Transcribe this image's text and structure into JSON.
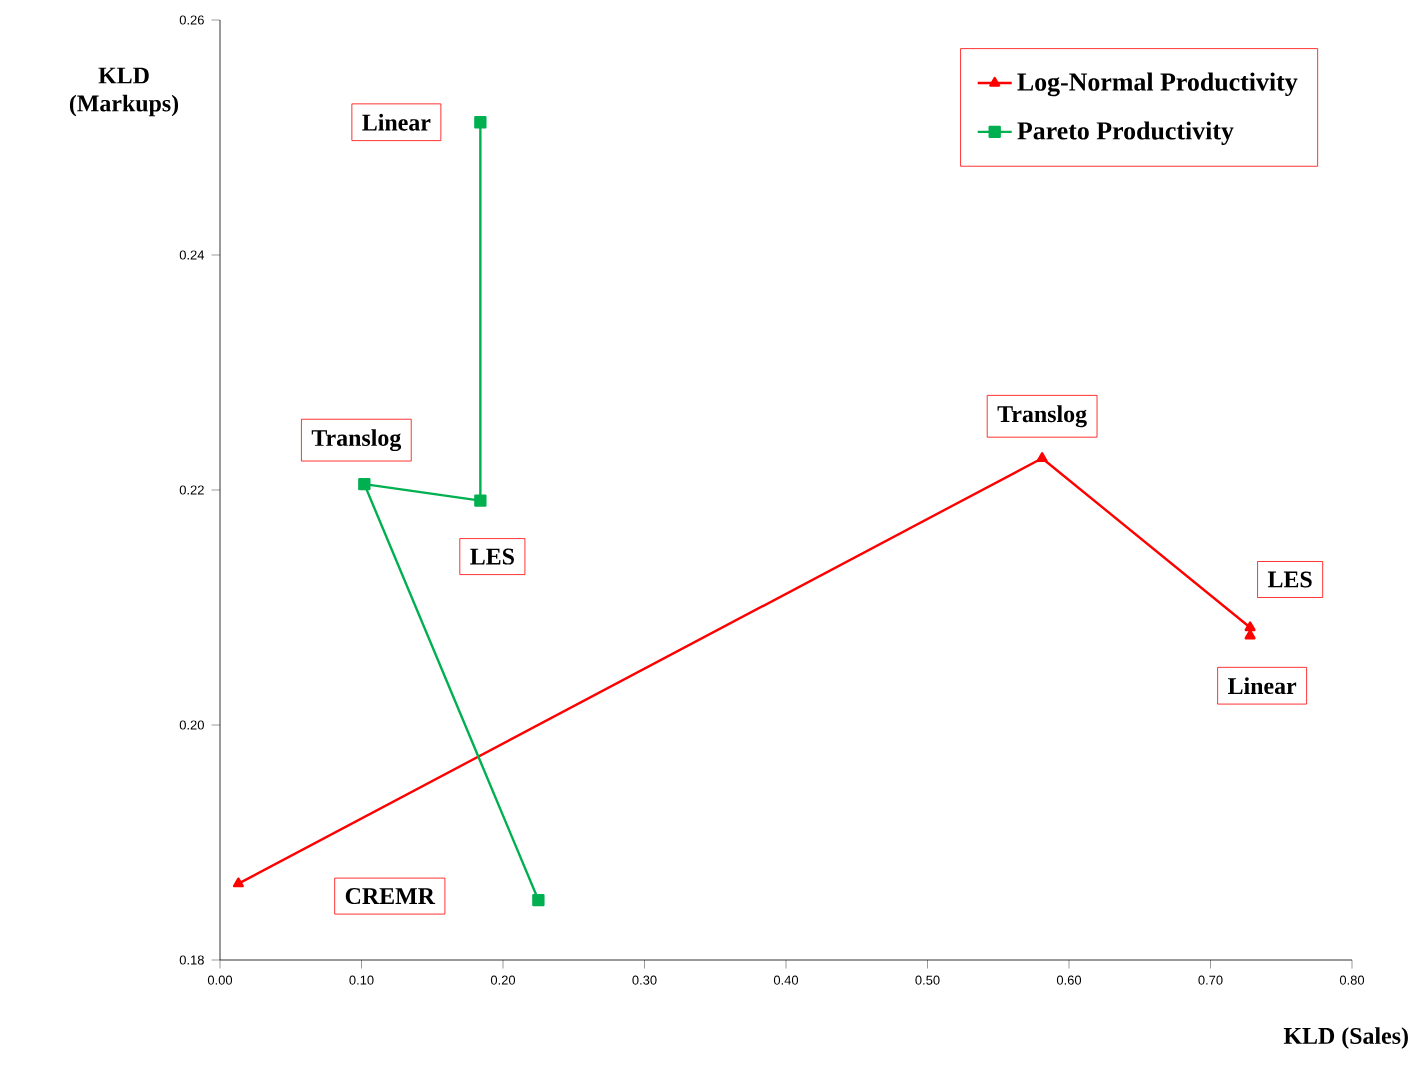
{
  "chart_data": {
    "type": "line",
    "xlabel": "KLD (Sales)",
    "ylabel": "KLD\n(Markups)",
    "xlim": [
      0,
      0.8
    ],
    "ylim": [
      0.18,
      0.26
    ],
    "xticks": [
      {
        "value": 0,
        "label": "0.00"
      },
      {
        "value": 0.1,
        "label": "0.10"
      },
      {
        "value": 0.2,
        "label": "0.20"
      },
      {
        "value": 0.3,
        "label": "0.30"
      },
      {
        "value": 0.4,
        "label": "0.40"
      },
      {
        "value": 0.5,
        "label": "0.50"
      },
      {
        "value": 0.6,
        "label": "0.60"
      },
      {
        "value": 0.7,
        "label": "0.70"
      },
      {
        "value": 0.8,
        "label": "0.80"
      }
    ],
    "yticks": [
      {
        "value": 0.18,
        "label": "0.18"
      },
      {
        "value": 0.2,
        "label": "0.20"
      },
      {
        "value": 0.22,
        "label": "0.22"
      },
      {
        "value": 0.24,
        "label": "0.24"
      },
      {
        "value": 0.26,
        "label": "0.26"
      }
    ],
    "grid": false,
    "legend": "top right",
    "line_style": "solid",
    "series": [
      {
        "name": "Log-Normal Productivity",
        "color": "#ff0000",
        "marker": "triangle",
        "x": [
          0.013,
          0.581,
          0.728,
          0.728
        ],
        "values": [
          0.1865,
          0.2227,
          0.2083,
          0.2076
        ]
      },
      {
        "name": "Pareto Productivity",
        "color": "#00b050",
        "marker": "square",
        "x": [
          0.184,
          0.184,
          0.102,
          0.225
        ],
        "values": [
          0.2513,
          0.2191,
          0.2205,
          0.1851
        ]
      }
    ],
    "annotations": [
      {
        "text": "Linear",
        "x": 0.184,
        "y": 0.2513
      },
      {
        "text": "Translog",
        "x": 0.102,
        "y": 0.2205
      },
      {
        "text": "LES",
        "x": 0.184,
        "y": 0.2191
      },
      "CREMR",
      {
        "text": "Translog",
        "x": 0.581,
        "y": 0.2227
      },
      {
        "text": "LES",
        "x": 0.728,
        "y": 0.2083
      },
      {
        "text": "Linear",
        "x": 0.728,
        "y": 0.2076
      }
    ]
  }
}
